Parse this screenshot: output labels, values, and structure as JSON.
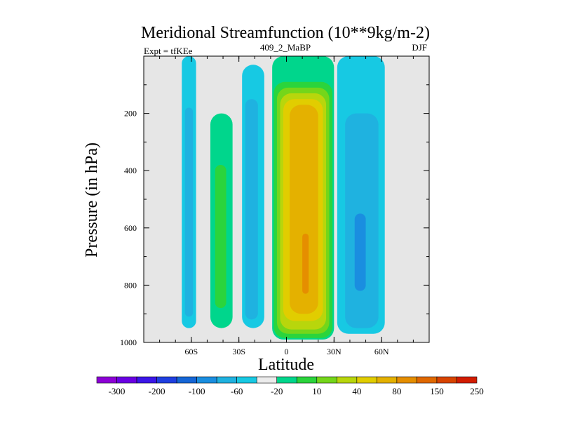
{
  "chart_data": {
    "type": "contour",
    "title": "Meridional Streamfunction (10**9kg/m-2)",
    "left_string": "Expt = tfKEe",
    "center_string": "409_2_MaBP",
    "right_string": "DJF",
    "xlabel": "Latitude",
    "ylabel": "Pressure (in hPa)",
    "xlim": [
      -90,
      90
    ],
    "ylim": [
      1000,
      0
    ],
    "x_ticks": [
      {
        "value": -60,
        "label": "60S"
      },
      {
        "value": -30,
        "label": "30S"
      },
      {
        "value": 0,
        "label": "0"
      },
      {
        "value": 30,
        "label": "30N"
      },
      {
        "value": 60,
        "label": "60N"
      }
    ],
    "y_ticks": [
      {
        "value": 200,
        "label": "200"
      },
      {
        "value": 400,
        "label": "400"
      },
      {
        "value": 600,
        "label": "600"
      },
      {
        "value": 800,
        "label": "800"
      },
      {
        "value": 1000,
        "label": "1000"
      }
    ],
    "background_color": "#e6e6e6",
    "colorbar": {
      "levels": [
        "-300",
        "-200",
        "-100",
        "-60",
        "-20",
        "10",
        "40",
        "80",
        "150",
        "250"
      ],
      "colors": [
        "#8d00d6",
        "#6a00e3",
        "#3b16e8",
        "#1f3fe0",
        "#1566d6",
        "#1a8ee0",
        "#1fb2e0",
        "#17c9e3",
        "#ececec",
        "#00d68c",
        "#2bd43c",
        "#74d61a",
        "#b8d60c",
        "#e1cd00",
        "#e4b100",
        "#e58e00",
        "#e06800",
        "#d84400",
        "#d21c00"
      ]
    },
    "cells": [
      {
        "name": "cell-60s",
        "value": -20,
        "color": "#17c9e3",
        "x": [
          -66,
          -57
        ],
        "y": [
          0,
          950
        ]
      },
      {
        "name": "cell-60s-core",
        "value": -60,
        "color": "#1fb2e0",
        "x": [
          -64,
          -59
        ],
        "y": [
          180,
          910
        ]
      },
      {
        "name": "cell-40s",
        "value": 10,
        "color": "#00d68c",
        "x": [
          -48,
          -34
        ],
        "y": [
          200,
          950
        ]
      },
      {
        "name": "cell-40s-core",
        "value": 40,
        "color": "#2bd43c",
        "x": [
          -45,
          -38
        ],
        "y": [
          380,
          880
        ]
      },
      {
        "name": "cell-25s",
        "value": -20,
        "color": "#17c9e3",
        "x": [
          -28,
          -14
        ],
        "y": [
          30,
          950
        ]
      },
      {
        "name": "cell-25s-core",
        "value": -60,
        "color": "#1fb2e0",
        "x": [
          -26,
          -18
        ],
        "y": [
          150,
          920
        ]
      },
      {
        "name": "hadley-cell",
        "value": 10,
        "color": "#00d68c",
        "x": [
          -9,
          30
        ],
        "y": [
          0,
          990
        ]
      },
      {
        "name": "hadley-40",
        "value": 40,
        "color": "#2bd43c",
        "x": [
          -8,
          29
        ],
        "y": [
          90,
          985
        ]
      },
      {
        "name": "hadley-80",
        "value": 80,
        "color": "#74d61a",
        "x": [
          -6,
          27
        ],
        "y": [
          110,
          970
        ]
      },
      {
        "name": "hadley-150",
        "value": 150,
        "color": "#b8d60c",
        "x": [
          -4,
          25
        ],
        "y": [
          130,
          955
        ]
      },
      {
        "name": "hadley-200",
        "value": 200,
        "color": "#e1cd00",
        "x": [
          -2,
          23
        ],
        "y": [
          150,
          925
        ]
      },
      {
        "name": "hadley-250",
        "value": 250,
        "color": "#e4b100",
        "x": [
          2,
          20
        ],
        "y": [
          170,
          900
        ]
      },
      {
        "name": "hadley-core",
        "value": 300,
        "color": "#e58e00",
        "x": [
          10,
          14
        ],
        "y": [
          620,
          830
        ]
      },
      {
        "name": "cell-45n",
        "value": -20,
        "color": "#17c9e3",
        "x": [
          32,
          62
        ],
        "y": [
          0,
          970
        ]
      },
      {
        "name": "cell-45n-core",
        "value": -60,
        "color": "#1fb2e0",
        "x": [
          37,
          58
        ],
        "y": [
          200,
          950
        ]
      },
      {
        "name": "cell-45n-inner",
        "value": -100,
        "color": "#1a8ee0",
        "x": [
          43,
          50
        ],
        "y": [
          550,
          820
        ]
      }
    ]
  }
}
